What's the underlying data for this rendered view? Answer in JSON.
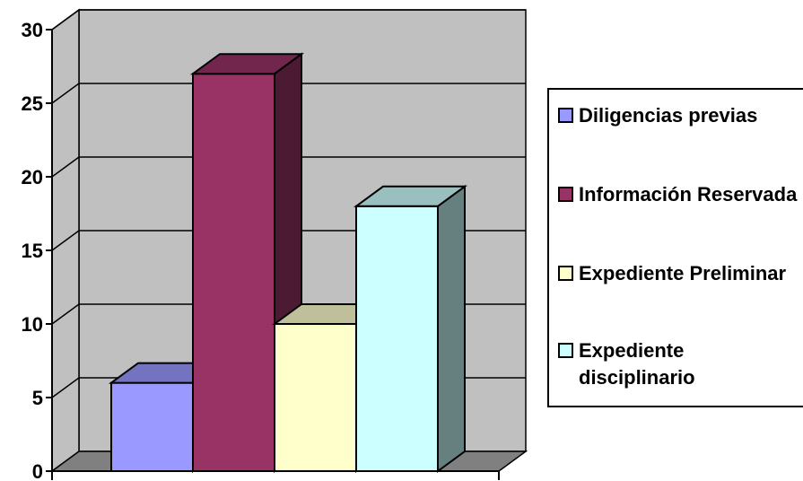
{
  "chart_data": {
    "type": "bar",
    "title": "",
    "xlabel": "",
    "ylabel": "",
    "ylim": [
      0,
      30
    ],
    "yticks": [
      "0",
      "5",
      "10",
      "15",
      "20",
      "25",
      "30"
    ],
    "grid": true,
    "three_d": true,
    "legend_position": "right",
    "series": [
      {
        "name": "Diligencias previas",
        "value": 6,
        "color": "#9999ff"
      },
      {
        "name": "Información Reservada",
        "value": 27,
        "color": "#993366"
      },
      {
        "name": "Expediente Preliminar",
        "value": 10,
        "color": "#ffffcc"
      },
      {
        "name": "Expediente disciplinario",
        "value": 18,
        "color": "#ccffff"
      }
    ],
    "colors": {
      "wall": "#c0c0c0",
      "floor": "#808080",
      "gridline": "#000000"
    }
  }
}
